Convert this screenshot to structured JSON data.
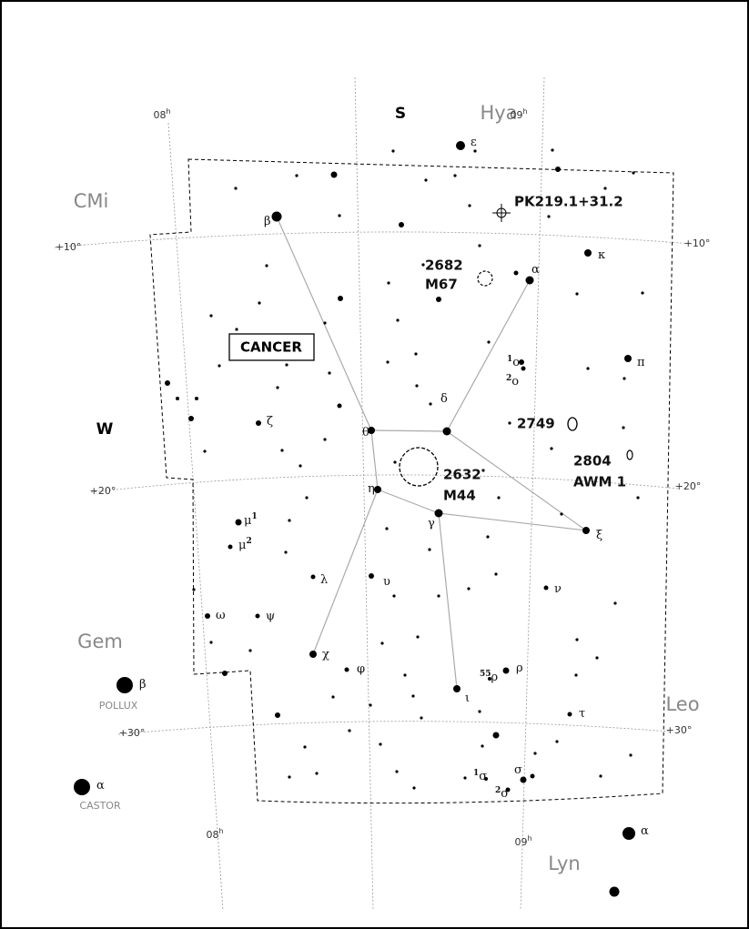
{
  "constellation": "CANCER",
  "directions": {
    "south": "S",
    "west": "W"
  },
  "neighbors": [
    "Hya",
    "CMi",
    "Gem",
    "Leo",
    "Lyn"
  ],
  "right_ascension": [
    {
      "hours": "08",
      "unit": "h"
    },
    {
      "hours": "09",
      "unit": "h"
    },
    {
      "hours": "08",
      "unit": "h"
    },
    {
      "hours": "09",
      "unit": "h"
    }
  ],
  "declination": [
    "+10°",
    "+10°",
    "+20°",
    "+20°",
    "+30°",
    "+30°"
  ],
  "deep_sky": [
    {
      "name": "PK219.1+31.2"
    },
    {
      "ngc": "2682",
      "messier": "M67"
    },
    {
      "ngc": "2749"
    },
    {
      "ngc": "2804",
      "other": "AWM 1"
    },
    {
      "ngc": "2632",
      "messier": "M44"
    }
  ],
  "named_stars": [
    "POLLUX",
    "CASTOR"
  ],
  "stars": [
    {
      "letter": "ε"
    },
    {
      "letter": "β"
    },
    {
      "letter": "α"
    },
    {
      "letter": "κ"
    },
    {
      "letter": "π"
    },
    {
      "prefix": "1",
      "letter": "ο"
    },
    {
      "prefix": "2",
      "letter": "ο"
    },
    {
      "letter": "δ"
    },
    {
      "letter": "θ"
    },
    {
      "letter": "ζ"
    },
    {
      "letter": "η"
    },
    {
      "letter": "γ"
    },
    {
      "letter": "ξ"
    },
    {
      "letter": "μ",
      "superscript": "1"
    },
    {
      "letter": "μ",
      "superscript": "2"
    },
    {
      "letter": "λ"
    },
    {
      "letter": "υ"
    },
    {
      "letter": "ν"
    },
    {
      "letter": "ω"
    },
    {
      "letter": "ψ"
    },
    {
      "letter": "χ"
    },
    {
      "letter": "φ"
    },
    {
      "letter": "ι"
    },
    {
      "prefix": "55",
      "letter": "ρ"
    },
    {
      "letter": "ρ"
    },
    {
      "letter": "τ"
    },
    {
      "prefix": "1",
      "letter": "σ"
    },
    {
      "prefix": "2",
      "letter": "σ"
    },
    {
      "letter": "σ"
    },
    {
      "letter": "β"
    },
    {
      "letter": "α"
    },
    {
      "letter": "α"
    }
  ]
}
